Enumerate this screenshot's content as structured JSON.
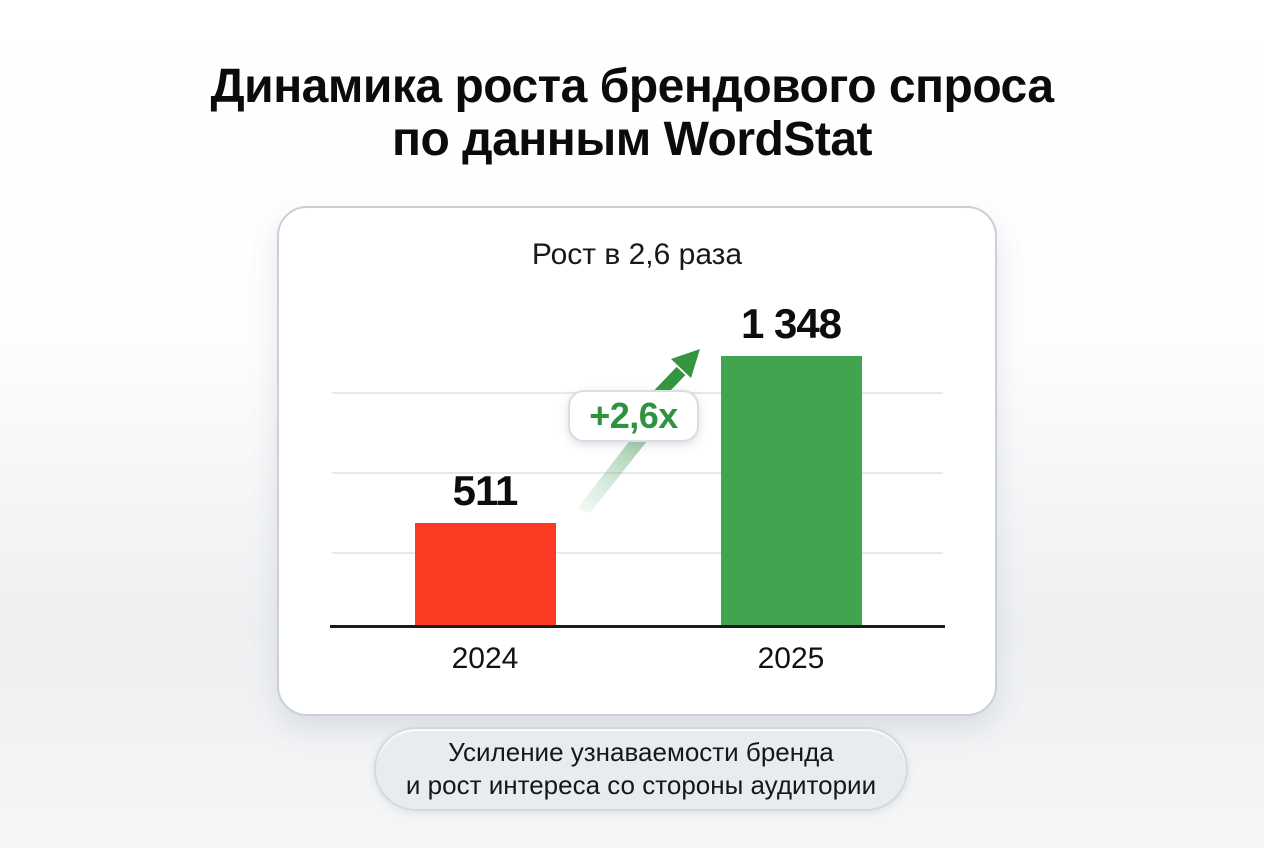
{
  "page": {
    "title_line1": "Динамика роста брендового спроса",
    "title_line2": "по данным WordStat"
  },
  "card": {
    "subtitle": "Рост в 2,6 раза",
    "badge_label": "+2,6x"
  },
  "chart_data": {
    "type": "bar",
    "title": "Рост в 2,6 раза",
    "categories": [
      "2024",
      "2025"
    ],
    "values": [
      511,
      1348
    ],
    "value_labels": [
      "511",
      "1 348"
    ],
    "bar_colors": [
      "#FB3B24",
      "#41A44E"
    ],
    "annotation": "+2,6x",
    "xlabel": "",
    "ylabel": "",
    "ylim": [
      0,
      1500
    ],
    "grid": "horizontal-light",
    "legend": "none"
  },
  "footer": {
    "note_line1": "Усиление узнаваемости бренда",
    "note_line2": "и рост интереса со стороны аудитории"
  },
  "icons": {
    "growth_arrow": "arrow-up-right-icon"
  },
  "colors": {
    "bar_2024": "#FB3B24",
    "bar_2025": "#41A44E",
    "badge_text": "#2F9240",
    "arrow": "#35953F",
    "gridline": "#E5E8EC",
    "axis": "#1B1B1B",
    "card_border": "#C9D0D9",
    "pill_bg": "#E8ECF1",
    "title_text": "#0B0B0B"
  }
}
